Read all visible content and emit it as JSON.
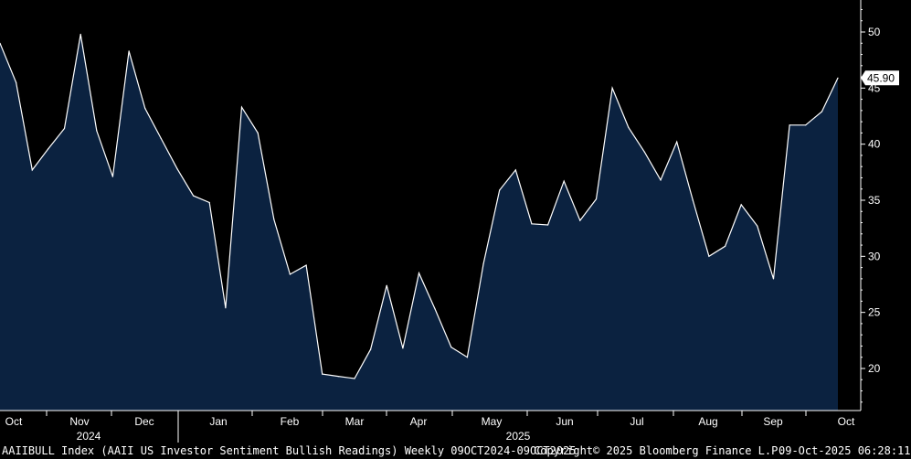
{
  "chart_data": {
    "type": "area",
    "ylim": [
      16,
      53
    ],
    "yticks": [
      20,
      25,
      30,
      35,
      40,
      45,
      50
    ],
    "last_value_label": "45.90",
    "months": [
      "Oct",
      "Nov",
      "Dec",
      "Jan",
      "Feb",
      "Mar",
      "Apr",
      "May",
      "Jun",
      "Jul",
      "Aug",
      "Sep",
      "Oct"
    ],
    "years": [
      "2024",
      "2025"
    ],
    "series": [
      {
        "values": [
          49.0,
          45.5,
          37.7,
          39.6,
          41.4,
          49.8,
          41.2,
          37.1,
          48.3,
          43.2,
          40.5,
          37.8,
          35.4,
          34.8,
          25.4,
          43.3,
          41.0,
          33.3,
          28.4,
          29.2,
          19.5,
          19.3,
          19.1,
          21.7,
          27.4,
          21.8,
          28.5,
          25.3,
          21.9,
          21.0,
          29.3,
          35.9,
          37.7,
          32.9,
          32.8,
          36.7,
          33.2,
          35.1,
          45.0,
          41.5,
          39.3,
          36.8,
          40.2,
          35.0,
          30.0,
          30.9,
          34.6,
          32.7,
          28.0,
          41.7,
          41.7,
          42.9,
          45.9
        ]
      }
    ]
  },
  "footer": {
    "description": "AAIIBULL Index (AAII US Investor Sentiment Bullish Readings) Weekly 09OCT2024-09OCT2025",
    "copyright": "Copyright© 2025 Bloomberg Finance L.P.",
    "timestamp": "09-Oct-2025 06:28:11"
  },
  "colors": {
    "area_fill": "#0b2240",
    "line": "#ffffff",
    "background": "#000000"
  }
}
